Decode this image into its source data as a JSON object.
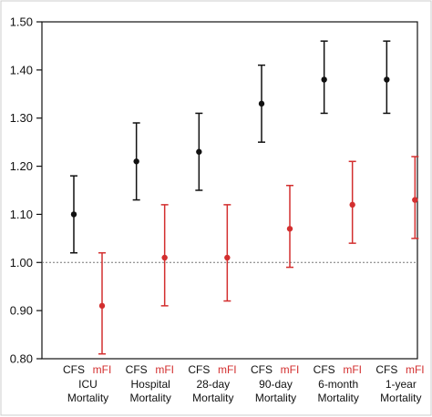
{
  "chart_data": {
    "type": "scatter",
    "title": "",
    "xlabel": "",
    "ylabel": "",
    "ylim": [
      0.8,
      1.5
    ],
    "yticks": [
      "0.80",
      "0.90",
      "1.00",
      "1.10",
      "1.20",
      "1.30",
      "1.40",
      "1.50"
    ],
    "reference_line": 1.0,
    "grid": false,
    "legend": "none",
    "groups": [
      {
        "line1": "ICU",
        "line2": "Mortality"
      },
      {
        "line1": "Hospital",
        "line2": "Mortality"
      },
      {
        "line1": "28-day",
        "line2": "Mortality"
      },
      {
        "line1": "90-day",
        "line2": "Mortality"
      },
      {
        "line1": "6-month",
        "line2": "Mortality"
      },
      {
        "line1": "1-year",
        "line2": "Mortality"
      }
    ],
    "series": [
      {
        "name": "CFS",
        "color": "#111111",
        "points": [
          {
            "value": 1.1,
            "lower": 1.02,
            "upper": 1.18
          },
          {
            "value": 1.21,
            "lower": 1.13,
            "upper": 1.29
          },
          {
            "value": 1.23,
            "lower": 1.15,
            "upper": 1.31
          },
          {
            "value": 1.33,
            "lower": 1.25,
            "upper": 1.41
          },
          {
            "value": 1.38,
            "lower": 1.31,
            "upper": 1.46
          },
          {
            "value": 1.38,
            "lower": 1.31,
            "upper": 1.46
          }
        ]
      },
      {
        "name": "mFI",
        "color": "#d32f2f",
        "points": [
          {
            "value": 0.91,
            "lower": 0.81,
            "upper": 1.02
          },
          {
            "value": 1.01,
            "lower": 0.91,
            "upper": 1.12
          },
          {
            "value": 1.01,
            "lower": 0.92,
            "upper": 1.12
          },
          {
            "value": 1.07,
            "lower": 0.99,
            "upper": 1.16
          },
          {
            "value": 1.12,
            "lower": 1.04,
            "upper": 1.21
          },
          {
            "value": 1.13,
            "lower": 1.05,
            "upper": 1.22
          }
        ]
      }
    ]
  }
}
